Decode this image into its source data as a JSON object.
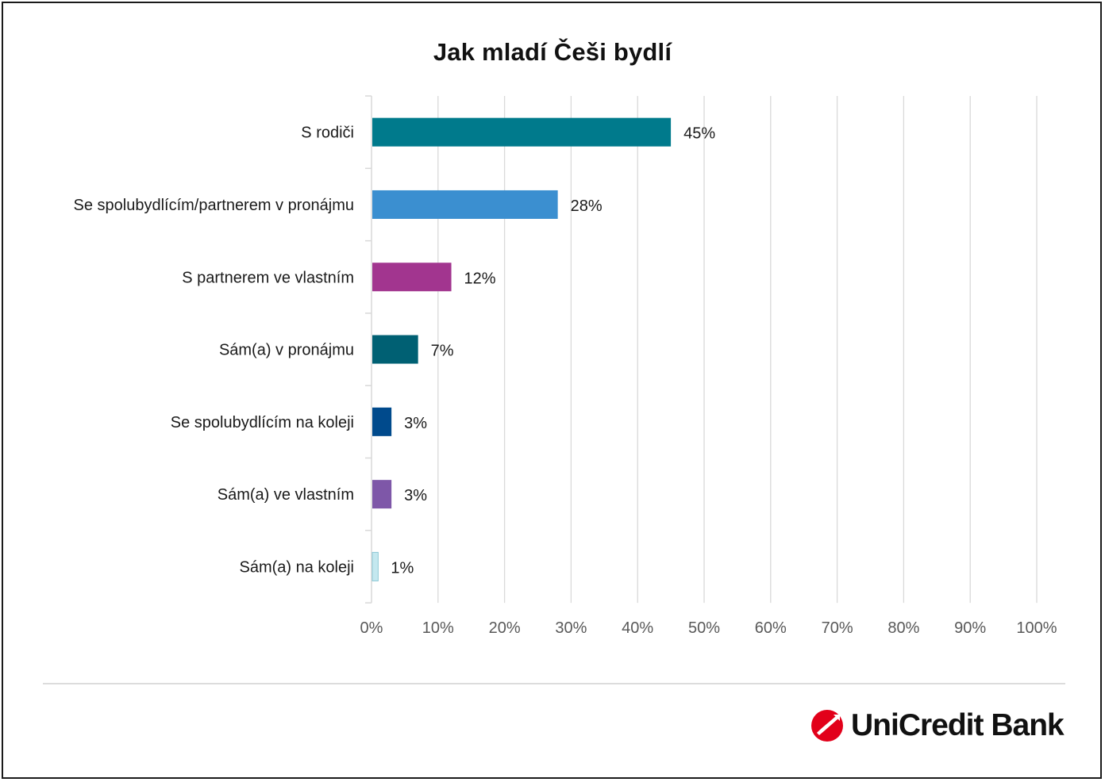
{
  "chart_data": {
    "type": "bar",
    "orientation": "horizontal",
    "title": "Jak mladí Češi bydlí",
    "categories": [
      "S rodiči",
      "Se spolubydlícím/partnerem v pronájmu",
      "S partnerem ve vlastním",
      "Sám(a) v pronájmu",
      "Se spolubydlícím na koleji",
      "Sám(a) ve vlastním",
      "Sám(a) na koleji"
    ],
    "values": [
      45,
      28,
      12,
      7,
      3,
      3,
      1
    ],
    "value_labels": [
      "45%",
      "28%",
      "12%",
      "7%",
      "3%",
      "3%",
      "1%"
    ],
    "colors": [
      "#007a8c",
      "#3b8fd0",
      "#a2358f",
      "#006073",
      "#004a8c",
      "#7e57a8",
      "#c4e8ef"
    ],
    "xlim": [
      0,
      100
    ],
    "x_ticks": [
      "0%",
      "10%",
      "20%",
      "30%",
      "40%",
      "50%",
      "60%",
      "70%",
      "80%",
      "90%",
      "100%"
    ],
    "xlabel": "",
    "ylabel": "",
    "grid": true,
    "legend": "none"
  },
  "logo": {
    "text": "UniCredit Bank",
    "color": "#e2001a"
  }
}
